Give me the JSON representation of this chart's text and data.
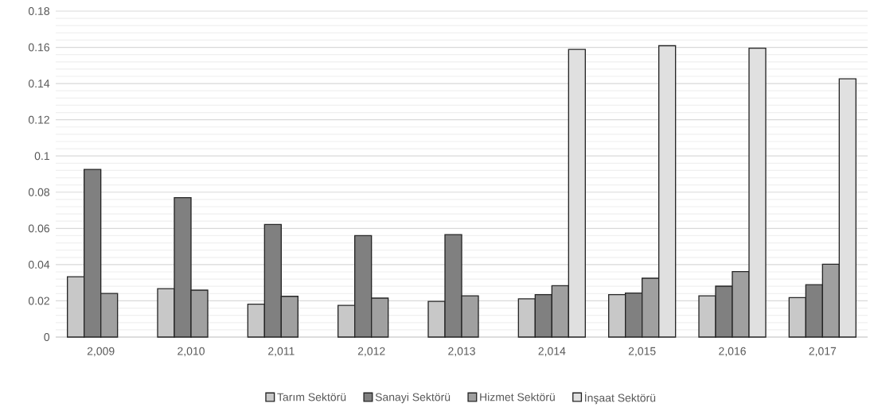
{
  "chart_data": {
    "type": "bar",
    "categories": [
      "2,009",
      "2,010",
      "2,011",
      "2,012",
      "2,013",
      "2,014",
      "2,015",
      "2,016",
      "2,017"
    ],
    "series": [
      {
        "name": "Tarım Sektörü",
        "color": "#c8c8c8",
        "values": [
          0.0333,
          0.0267,
          0.0182,
          0.0175,
          0.0197,
          0.0211,
          0.0234,
          0.0228,
          0.0218
        ]
      },
      {
        "name": "Sanayi Sektörü",
        "color": "#808080",
        "values": [
          0.0926,
          0.077,
          0.0622,
          0.056,
          0.0566,
          0.0234,
          0.0243,
          0.0281,
          0.0289
        ]
      },
      {
        "name": "Hizmet Sektörü",
        "color": "#a0a0a0",
        "values": [
          0.0241,
          0.0259,
          0.0225,
          0.0215,
          0.0228,
          0.0284,
          0.0325,
          0.0362,
          0.0402
        ]
      },
      {
        "name": "İnşaat Sektörü",
        "color": "#e0e0e0",
        "values": [
          null,
          null,
          null,
          null,
          null,
          0.1589,
          0.1609,
          0.1595,
          0.1426
        ]
      }
    ],
    "ylim": [
      0,
      0.18
    ],
    "yticks": [
      0,
      0.02,
      0.04,
      0.06,
      0.08,
      0.1,
      0.12,
      0.14,
      0.16,
      0.18
    ],
    "grid": "y",
    "legend": "bottom"
  }
}
